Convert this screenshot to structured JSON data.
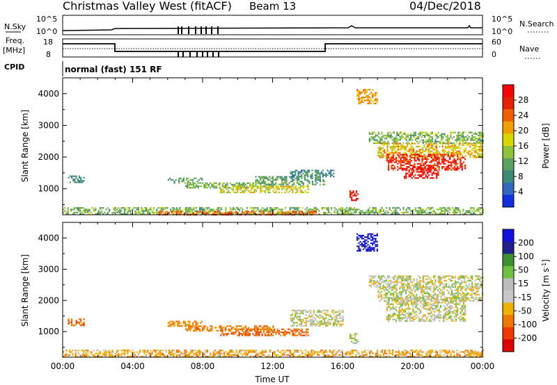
{
  "header": {
    "title": "Christmas Valley West (fitACF)",
    "beam": "Beam 13",
    "date": "04/Dec/2018"
  },
  "panels": {
    "nsky_label": "N.Sky",
    "nsky_tick_top": "10^5",
    "nsky_tick_bottom": "10^0",
    "nsearch_label": "N.Search",
    "nsearch_tick_top": "10^5",
    "nsearch_tick_bottom": "10^0",
    "freq_label": "Freq.",
    "freq_unit": "[MHz]",
    "freq_tick_top": "18",
    "freq_tick_bottom": "8",
    "nave_label": "Nave",
    "nave_tick_top": "60",
    "nave_tick_bottom": "0",
    "cpid_label": "CPID",
    "cpid_value": "normal (fast) 151 RF"
  },
  "colors": {
    "power": [
      "#1030e0",
      "#2f6ac0",
      "#3e8a78",
      "#5aa060",
      "#8fc23c",
      "#d8d800",
      "#f0a000",
      "#f06000",
      "#e82000",
      "#ff0000"
    ],
    "velocity": [
      "#e00000",
      "#f03a00",
      "#f07800",
      "#f0b000",
      "#c8c8c8",
      "#bcbcbc",
      "#70c040",
      "#3c9030",
      "#20208a",
      "#1010e0"
    ]
  },
  "chart_data": [
    {
      "type": "heatmap",
      "name": "power",
      "ylabel": "Slant Range [km]",
      "xlabel": "",
      "x_ticks": [
        "00:00",
        "04:00",
        "08:00",
        "12:00",
        "16:00",
        "20:00",
        "00:00"
      ],
      "xlim_hours": [
        0,
        24
      ],
      "ylim": [
        180,
        4500
      ],
      "y_ticks": [
        1000,
        2000,
        3000,
        4000
      ],
      "colorbar_label": "Power [dB]",
      "colorbar_ticks": [
        "4",
        "8",
        "12",
        "16",
        "20",
        "24",
        "28"
      ],
      "regions": [
        {
          "t0": 0.3,
          "t1": 1.2,
          "r0": 1180,
          "r1": 1420,
          "value": 8
        },
        {
          "t0": 0.0,
          "t1": 24.0,
          "r0": 190,
          "r1": 420,
          "value": 12
        },
        {
          "t0": 5.5,
          "t1": 14.5,
          "r0": 190,
          "r1": 300,
          "value": 22
        },
        {
          "t0": 6.0,
          "t1": 8.0,
          "r0": 1200,
          "r1": 1350,
          "value": 10
        },
        {
          "t0": 7.0,
          "t1": 12.0,
          "r0": 1050,
          "r1": 1200,
          "value": 12
        },
        {
          "t0": 9.0,
          "t1": 14.0,
          "r0": 900,
          "r1": 1100,
          "value": 16
        },
        {
          "t0": 11.0,
          "t1": 15.0,
          "r0": 1150,
          "r1": 1400,
          "value": 10
        },
        {
          "t0": 13.0,
          "t1": 15.5,
          "r0": 1400,
          "r1": 1600,
          "value": 8
        },
        {
          "t0": 16.4,
          "t1": 16.9,
          "r0": 650,
          "r1": 950,
          "value": 28
        },
        {
          "t0": 16.8,
          "t1": 18.0,
          "r0": 3700,
          "r1": 4150,
          "value": 20
        },
        {
          "t0": 17.5,
          "t1": 24.0,
          "r0": 2450,
          "r1": 2800,
          "value": 12
        },
        {
          "t0": 18.0,
          "t1": 24.0,
          "r0": 2000,
          "r1": 2450,
          "value": 18
        },
        {
          "t0": 18.5,
          "t1": 23.0,
          "r0": 1600,
          "r1": 2100,
          "value": 26
        },
        {
          "t0": 19.5,
          "t1": 21.5,
          "r0": 1350,
          "r1": 1700,
          "value": 28
        }
      ]
    },
    {
      "type": "heatmap",
      "name": "velocity",
      "ylabel": "Slant Range [km]",
      "xlabel": "Time UT",
      "x_ticks": [
        "00:00",
        "04:00",
        "08:00",
        "12:00",
        "16:00",
        "20:00",
        "00:00"
      ],
      "xlim_hours": [
        0,
        24
      ],
      "ylim": [
        180,
        4500
      ],
      "y_ticks": [
        1000,
        2000,
        3000,
        4000
      ],
      "colorbar_label": "Velocity [m s^-1]",
      "colorbar_ticks": [
        "200",
        "100",
        "50",
        "15",
        "-15",
        "-50",
        "-100",
        "-200"
      ],
      "regions": [
        {
          "t0": 0.3,
          "t1": 1.2,
          "r0": 1180,
          "r1": 1420,
          "value": -80
        },
        {
          "t0": 0.0,
          "t1": 24.0,
          "r0": 190,
          "r1": 420,
          "value": -40
        },
        {
          "t0": 6.0,
          "t1": 8.0,
          "r0": 1200,
          "r1": 1350,
          "value": -60
        },
        {
          "t0": 7.0,
          "t1": 12.0,
          "r0": 1050,
          "r1": 1200,
          "value": -70
        },
        {
          "t0": 9.0,
          "t1": 14.0,
          "r0": 900,
          "r1": 1100,
          "value": -90
        },
        {
          "t0": 13.0,
          "t1": 16.0,
          "r0": 1200,
          "r1": 1700,
          "value": 0
        },
        {
          "t0": 16.4,
          "t1": 16.9,
          "r0": 650,
          "r1": 950,
          "value": 0
        },
        {
          "t0": 16.8,
          "t1": 18.0,
          "r0": 3600,
          "r1": 4150,
          "value": 220
        },
        {
          "t0": 17.5,
          "t1": 24.0,
          "r0": 2450,
          "r1": 2800,
          "value": 0
        },
        {
          "t0": 18.0,
          "t1": 24.0,
          "r0": 2000,
          "r1": 2450,
          "value": 0
        },
        {
          "t0": 18.5,
          "t1": 23.0,
          "r0": 1350,
          "r1": 2100,
          "value": 0
        }
      ]
    }
  ]
}
